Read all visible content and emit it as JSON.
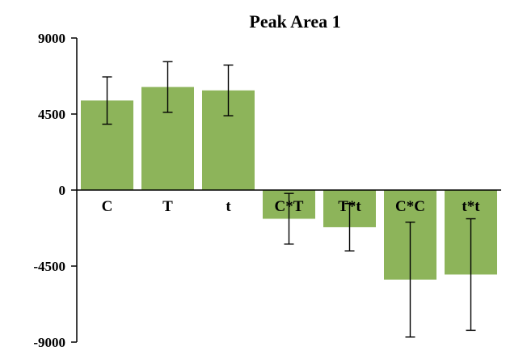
{
  "chart_data": {
    "type": "bar",
    "title": "Peak Area 1",
    "categories": [
      "C",
      "T",
      "t",
      "C*T",
      "T*t",
      "C*C",
      "t*t"
    ],
    "series": [
      {
        "values": [
          5300,
          6100,
          5900,
          -1700,
          -2200,
          -5300,
          -5000
        ],
        "error": [
          1400,
          1500,
          1500,
          1500,
          1400,
          3400,
          3300
        ]
      }
    ],
    "ylim": [
      -9000,
      9000
    ],
    "yticks": [
      9000,
      4500,
      0,
      -4500,
      -9000
    ],
    "ytick_labels": [
      "9000",
      "4500",
      "0",
      "-4500",
      "-9000"
    ],
    "xlabel": "",
    "ylabel": "",
    "bar_color": "#8db45a",
    "grid": false,
    "legend": "none"
  }
}
